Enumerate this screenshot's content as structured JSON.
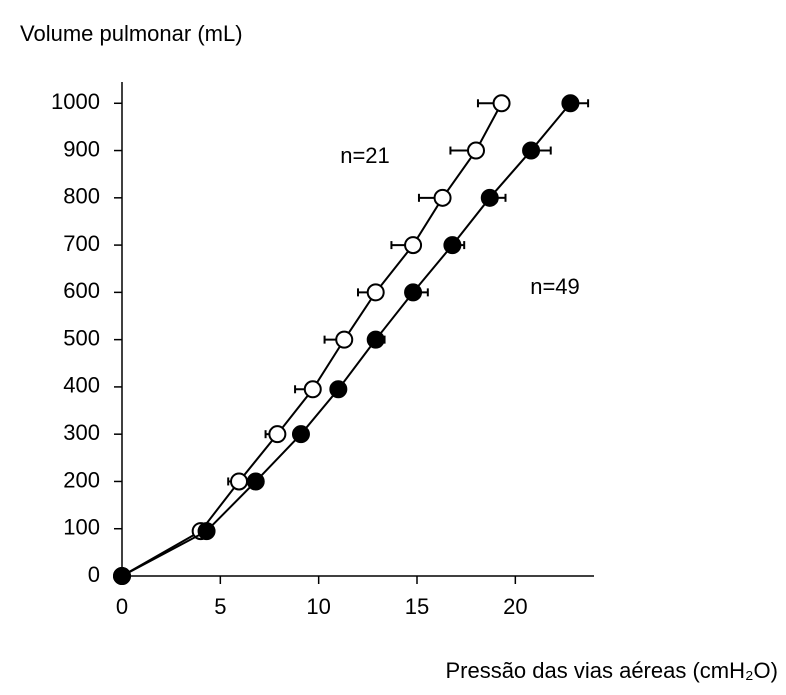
{
  "chart_data": {
    "type": "line",
    "y_label": "Volume pulmonar (mL)",
    "x_label": "Pressão das vias aéreas (cmH₂O)",
    "xlim": [
      0,
      24
    ],
    "ylim": [
      0,
      1045
    ],
    "xticks": [
      0,
      5,
      10,
      15,
      20
    ],
    "yticks": [
      0,
      100,
      200,
      300,
      400,
      500,
      600,
      700,
      800,
      900,
      1000
    ],
    "series": [
      {
        "name": "n=21",
        "color": "#000000",
        "fill": "#ffffff",
        "x": [
          0,
          4.0,
          5.95,
          7.9,
          9.7,
          11.3,
          12.9,
          14.8,
          16.3,
          18.0,
          19.3
        ],
        "values": [
          0,
          95,
          200,
          300,
          395,
          500,
          600,
          700,
          800,
          900,
          1000
        ],
        "xerr": [
          null,
          null,
          0.55,
          0.6,
          0.9,
          1.0,
          0.9,
          1.1,
          1.2,
          1.3,
          1.2
        ]
      },
      {
        "name": "n=49",
        "color": "#000000",
        "fill": "#000000",
        "x": [
          0,
          4.3,
          6.8,
          9.1,
          11.0,
          12.9,
          14.8,
          16.8,
          18.7,
          20.8,
          22.8
        ],
        "values": [
          0,
          95,
          200,
          300,
          395,
          500,
          600,
          700,
          800,
          900,
          1000
        ],
        "xerr": [
          null,
          null,
          null,
          null,
          null,
          0.45,
          0.75,
          0.6,
          0.8,
          1.0,
          0.9
        ]
      }
    ]
  }
}
